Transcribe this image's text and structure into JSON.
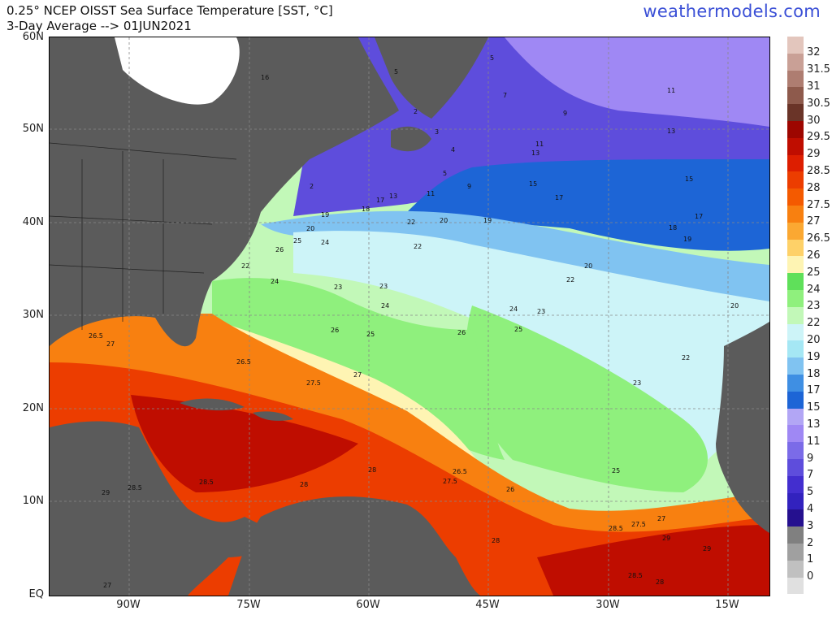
{
  "header": {
    "title_line1": "0.25° NCEP OISST Sea Surface Temperature [SST, °C]",
    "title_line2": "3-Day Average --> 01JUN2021",
    "brand": "weathermodels.com"
  },
  "axes": {
    "lat_labels": [
      "60N",
      "50N",
      "40N",
      "30N",
      "20N",
      "10N",
      "EQ"
    ],
    "lon_labels": [
      "90W",
      "75W",
      "60W",
      "45W",
      "30W",
      "15W"
    ]
  },
  "legend": {
    "labels": [
      "32",
      "31.5",
      "31",
      "30.5",
      "30",
      "29.5",
      "29",
      "28.5",
      "28",
      "27.5",
      "27",
      "26.5",
      "26",
      "25",
      "24",
      "23",
      "22",
      "20",
      "19",
      "18",
      "17",
      "15",
      "13",
      "11",
      "9",
      "7",
      "5",
      "4",
      "3",
      "2",
      "1",
      "0"
    ],
    "colors": [
      "#e3c6bd",
      "#c9a096",
      "#ae7d71",
      "#8e5a4c",
      "#6a3428",
      "#9d0600",
      "#bf0d00",
      "#dd1e00",
      "#ec3d00",
      "#f45a00",
      "#f88010",
      "#fba832",
      "#fed168",
      "#fef4b3",
      "#8ff07d",
      "#a5f599",
      "#c2f8b8",
      "#cdf4f8",
      "#a5e7f4",
      "#80c3f1",
      "#3f8fe3",
      "#1d65d6",
      "#b2a6f5",
      "#9f88f4",
      "#7b6be8",
      "#5e4ddc",
      "#432ecf",
      "#3222be",
      "#25108f",
      "#808080",
      "#a0a0a0",
      "#c0c0c0",
      "#e0e0e0"
    ]
  },
  "contour_labels": [
    "5",
    "5",
    "7",
    "9",
    "11",
    "11",
    "13",
    "13",
    "13",
    "15",
    "15",
    "17",
    "17",
    "17",
    "18",
    "18",
    "19",
    "19",
    "19",
    "20",
    "20",
    "20",
    "20",
    "22",
    "22",
    "22",
    "22",
    "22",
    "23",
    "23",
    "23",
    "23",
    "24",
    "24",
    "24",
    "24",
    "25",
    "25",
    "25",
    "25",
    "26",
    "26",
    "26",
    "26",
    "26.5",
    "26.5",
    "26.5",
    "27",
    "27",
    "27",
    "27",
    "27.5",
    "27.5",
    "27.5",
    "28",
    "28",
    "28",
    "28",
    "28.5",
    "28.5",
    "28.5",
    "28.5",
    "29",
    "29",
    "29",
    "2",
    "3",
    "4",
    "5",
    "9",
    "11",
    "16",
    "2"
  ],
  "map": {
    "colors": {
      "land": "#5b5b5b",
      "border": "#222222",
      "grid": "#888888"
    }
  }
}
